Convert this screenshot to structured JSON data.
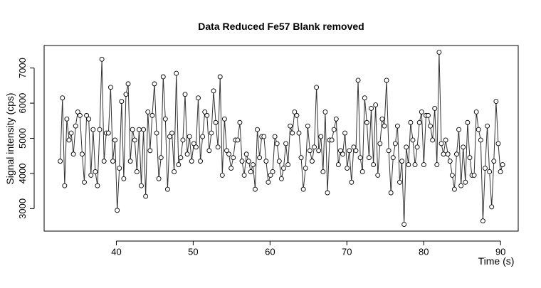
{
  "chart_data": {
    "type": "line",
    "title": "Data Reduced Fe57 Blank removed",
    "x_label": "Time (s)",
    "y_label": "Signal intensity (cps)",
    "x": [
      32.7,
      32.985,
      33.27,
      33.555,
      33.84,
      34.125,
      34.41,
      34.695,
      34.98,
      35.265,
      35.55,
      35.835,
      36.12,
      36.405,
      36.69,
      36.975,
      37.26,
      37.545,
      37.83,
      38.115,
      38.4,
      38.685,
      38.97,
      39.255,
      39.54,
      39.825,
      40.11,
      40.395,
      40.68,
      40.965,
      41.25,
      41.535,
      41.82,
      42.105,
      42.39,
      42.675,
      42.96,
      43.245,
      43.53,
      43.815,
      44.1,
      44.385,
      44.67,
      44.955,
      45.24,
      45.525,
      45.81,
      46.095,
      46.38,
      46.665,
      46.95,
      47.235,
      47.52,
      47.805,
      48.09,
      48.375,
      48.66,
      48.945,
      49.23,
      49.515,
      49.8,
      50.085,
      50.37,
      50.655,
      50.94,
      51.225,
      51.51,
      51.795,
      52.08,
      52.365,
      52.65,
      52.935,
      53.22,
      53.505,
      53.79,
      54.075,
      54.36,
      54.645,
      54.93,
      55.215,
      55.5,
      55.785,
      56.07,
      56.355,
      56.64,
      56.925,
      57.21,
      57.495,
      57.78,
      58.065,
      58.35,
      58.635,
      58.92,
      59.205,
      59.49,
      59.775,
      60.06,
      60.345,
      60.63,
      60.915,
      61.2,
      61.485,
      61.77,
      62.055,
      62.34,
      62.625,
      62.91,
      63.195,
      63.48,
      63.765,
      64.05,
      64.335,
      64.62,
      64.905,
      65.19,
      65.475,
      65.76,
      66.045,
      66.33,
      66.615,
      66.9,
      67.185,
      67.47,
      67.755,
      68.04,
      68.325,
      68.61,
      68.895,
      69.18,
      69.465,
      69.75,
      70.035,
      70.32,
      70.605,
      70.89,
      71.175,
      71.46,
      71.745,
      72.03,
      72.315,
      72.6,
      72.885,
      73.17,
      73.455,
      73.74,
      74.025,
      74.31,
      74.595,
      74.88,
      75.165,
      75.45,
      75.735,
      76.02,
      76.305,
      76.59,
      76.875,
      77.16,
      77.445,
      77.73,
      78.015,
      78.3,
      78.585,
      78.87,
      79.155,
      79.44,
      79.725,
      80.01,
      80.295,
      80.58,
      80.865,
      81.15,
      81.435,
      81.72,
      82.005,
      82.29,
      82.575,
      82.86,
      83.145,
      83.43,
      83.715,
      84.0,
      84.285,
      84.57,
      84.855,
      85.14,
      85.425,
      85.71,
      85.995,
      86.28,
      86.565,
      86.85,
      87.135,
      87.42,
      87.705,
      87.99,
      88.275,
      88.56,
      88.845,
      89.13,
      89.415,
      89.7,
      89.985,
      90.27
    ],
    "values": [
      4350,
      6150,
      3650,
      5550,
      4950,
      5150,
      4550,
      5350,
      5750,
      5650,
      4550,
      3750,
      5650,
      5550,
      3950,
      5250,
      4050,
      3650,
      5250,
      7250,
      4350,
      5150,
      5150,
      6450,
      4350,
      4950,
      2950,
      4150,
      6050,
      3850,
      6250,
      6550,
      4350,
      5250,
      4950,
      4050,
      5250,
      3650,
      5250,
      3350,
      5750,
      4650,
      5650,
      6550,
      5150,
      3850,
      4450,
      6750,
      5550,
      3550,
      5050,
      5150,
      4050,
      6850,
      4250,
      4450,
      4950,
      6250,
      4550,
      5050,
      4350,
      4850,
      4750,
      6150,
      4350,
      5050,
      5750,
      5650,
      4650,
      5150,
      6350,
      5450,
      4750,
      6750,
      3950,
      5550,
      4650,
      4550,
      4150,
      4450,
      4950,
      4950,
      5450,
      4350,
      3950,
      4550,
      4350,
      4050,
      4250,
      3550,
      5250,
      4450,
      5050,
      5050,
      4350,
      3750,
      3950,
      4050,
      5050,
      4850,
      4350,
      3850,
      4150,
      4850,
      4250,
      5350,
      5150,
      5750,
      5650,
      5150,
      4450,
      3550,
      4150,
      5350,
      4650,
      4350,
      4750,
      6450,
      4650,
      5050,
      4050,
      5750,
      3450,
      4950,
      4950,
      5250,
      5550,
      4250,
      4650,
      4550,
      5150,
      4150,
      4650,
      3750,
      4750,
      4650,
      6650,
      4450,
      4050,
      6150,
      5450,
      4450,
      5850,
      4250,
      5950,
      3950,
      4850,
      5550,
      5350,
      6650,
      4650,
      3450,
      4450,
      4850,
      5350,
      3750,
      4350,
      2550,
      4750,
      4250,
      5450,
      4950,
      4250,
      4750,
      5450,
      5750,
      4250,
      5650,
      5650,
      5350,
      4950,
      5850,
      4250,
      7450,
      4850,
      4550,
      4950,
      4550,
      4350,
      3950,
      3550,
      4550,
      5250,
      3650,
      4750,
      3750,
      5450,
      4450,
      3950,
      3950,
      5750,
      5250,
      4950,
      2650,
      4150,
      5350,
      4050,
      3050,
      4350,
      6050,
      4850,
      4050,
      4250
    ],
    "color": "#333333",
    "xlim": [
      30.6,
      92.3
    ],
    "ylim": [
      2360,
      7640
    ],
    "xticks": [
      40,
      50,
      60,
      70,
      80,
      90
    ],
    "yticks": [
      3000,
      4000,
      5000,
      6000,
      7000
    ],
    "grid": false
  }
}
